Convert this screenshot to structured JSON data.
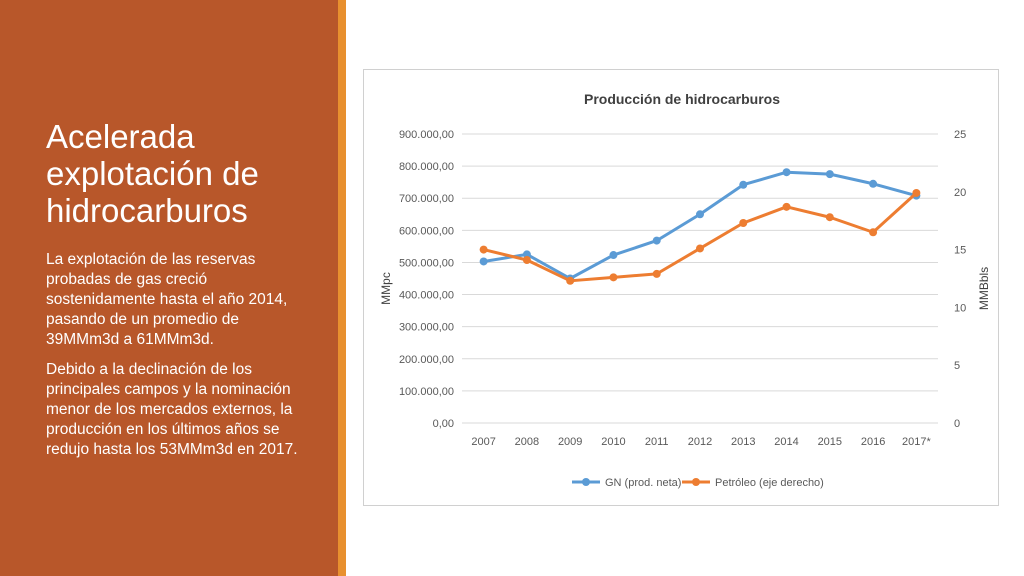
{
  "slide": {
    "title": "Acelerada explotación de hidrocarburos",
    "paragraphs": [
      "La explotación de  las reservas probadas de gas creció sostenidamente hasta el año 2014, pasando de un promedio de 39MMm3d a 61MMm3d.",
      "Debido a la declinación de los principales campos y la nominación menor de los mercados externos, la producción en los últimos años se redujo hasta los 53MMm3d en 2017."
    ]
  },
  "colors": {
    "panel": "#b8572a",
    "accent": "#e8902f",
    "gn": "#5b9bd5",
    "petroleo": "#ed7d31"
  },
  "chart_data": {
    "type": "line",
    "title": "Producción de hidrocarburos",
    "categories": [
      "2007",
      "2008",
      "2009",
      "2010",
      "2011",
      "2012",
      "2013",
      "2014",
      "2015",
      "2016",
      "2017*"
    ],
    "ylabel": "MMpc",
    "y2label": "MMBbls",
    "ylim": [
      0,
      900000
    ],
    "y2lim": [
      0,
      25
    ],
    "yticks": [
      "0,00",
      "100.000,00",
      "200.000,00",
      "300.000,00",
      "400.000,00",
      "500.000,00",
      "600.000,00",
      "700.000,00",
      "800.000,00",
      "900.000,00"
    ],
    "y2ticks": [
      "0",
      "5",
      "10",
      "15",
      "20",
      "25"
    ],
    "grid": true,
    "legend": "bottom",
    "series": [
      {
        "name": "GN (prod. neta)",
        "axis": "left",
        "color": "#5b9bd5",
        "values": [
          503000,
          525000,
          450000,
          523000,
          568000,
          650000,
          742000,
          781000,
          775000,
          745000,
          708000
        ]
      },
      {
        "name": "Petróleo (eje derecho)",
        "axis": "right",
        "color": "#ed7d31",
        "values": [
          15.0,
          14.1,
          12.3,
          12.6,
          12.9,
          15.1,
          17.3,
          18.7,
          17.8,
          16.5,
          19.9
        ]
      }
    ]
  }
}
